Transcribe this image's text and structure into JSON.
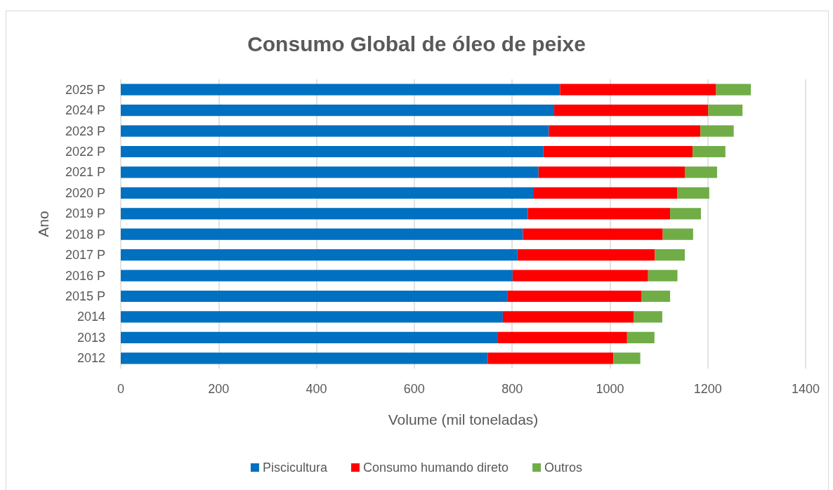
{
  "chart_data": {
    "type": "bar",
    "orientation": "horizontal",
    "stacked": true,
    "title": "Consumo Global de óleo de peixe",
    "xlabel": "Volume (mil toneladas)",
    "ylabel": "Ano",
    "categories": [
      "2025 P",
      "2024 P",
      "2023 P",
      "2022 P",
      "2021 P",
      "2020 P",
      "2019 P",
      "2018 P",
      "2017 P",
      "2016 P",
      "2015 P",
      "2014",
      "2013",
      "2012"
    ],
    "series": [
      {
        "name": "Piscicultura",
        "color": "#0070c0",
        "values": [
          898,
          886,
          875,
          864,
          854,
          843,
          832,
          822,
          811,
          801,
          791,
          781,
          771,
          750
        ]
      },
      {
        "name": "Consumo humando direto",
        "color": "#ff0000",
        "values": [
          319,
          315,
          310,
          305,
          299,
          295,
          291,
          286,
          281,
          277,
          273,
          268,
          264,
          257
        ]
      },
      {
        "name": "Outros",
        "color": "#70ad47",
        "values": [
          71,
          70,
          68,
          67,
          66,
          65,
          63,
          62,
          61,
          60,
          59,
          58,
          56,
          55
        ]
      }
    ],
    "xlim": [
      0,
      1400
    ],
    "xticks": [
      0,
      200,
      400,
      600,
      800,
      1000,
      1200,
      1400
    ],
    "grid": "x",
    "legend": "bottom"
  }
}
